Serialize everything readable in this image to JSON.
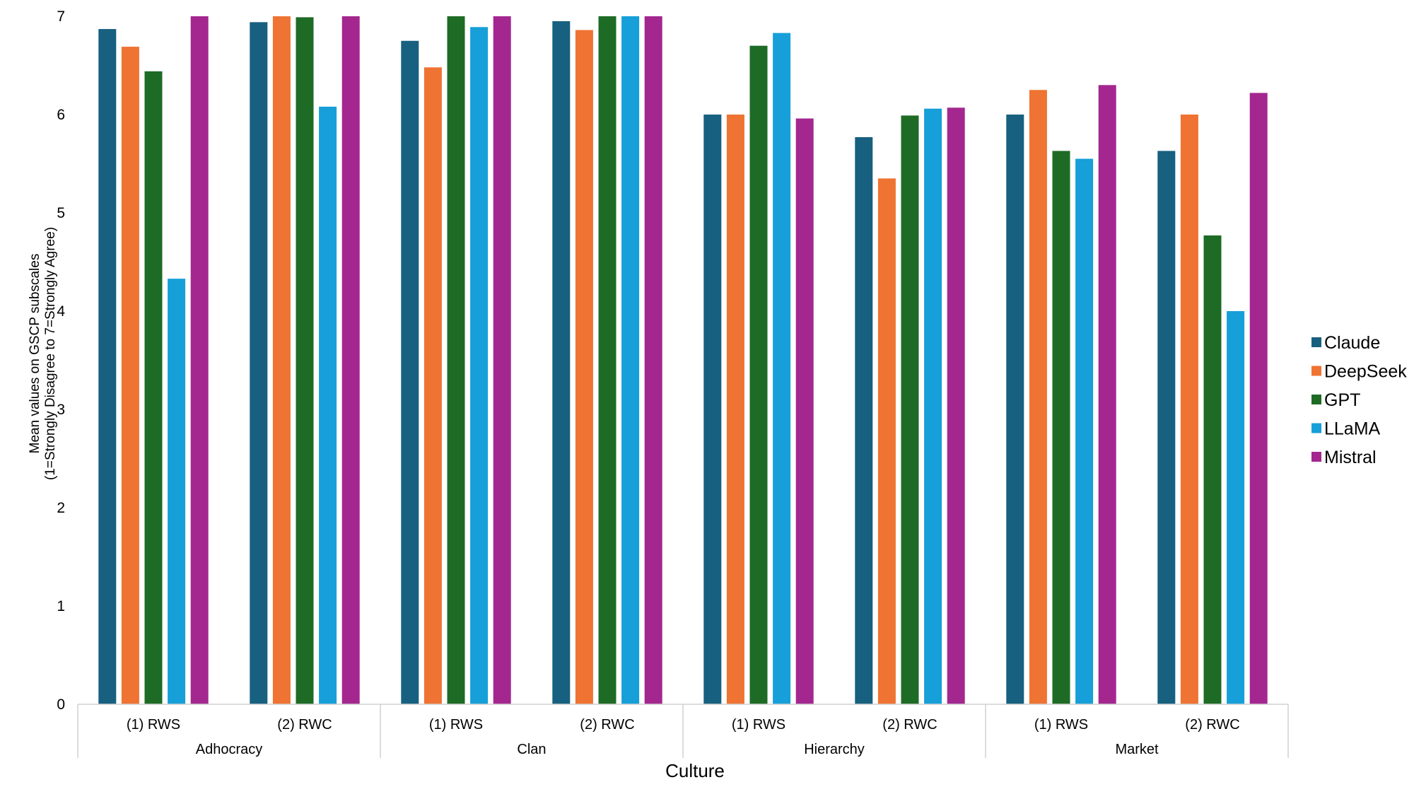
{
  "chart_data": {
    "type": "bar",
    "title": "",
    "xlabel": "Culture",
    "ylabel_lines": [
      "Mean values on GSCP subscales",
      "(1=Strongly Disagree to 7=Strongly Agree)"
    ],
    "ylim": [
      0,
      7
    ],
    "yticks": [
      0,
      1,
      2,
      3,
      4,
      5,
      6,
      7
    ],
    "grid": false,
    "legend_position": "right",
    "groups": [
      {
        "name": "Adhocracy",
        "subcategories": [
          "(1) RWS",
          "(2) RWC"
        ]
      },
      {
        "name": "Clan",
        "subcategories": [
          "(1) RWS",
          "(2) RWC"
        ]
      },
      {
        "name": "Hierarchy",
        "subcategories": [
          "(1) RWS",
          "(2) RWC"
        ]
      },
      {
        "name": "Market",
        "subcategories": [
          "(1) RWS",
          "(2) RWC"
        ]
      }
    ],
    "categories": [
      "Adhocracy (1) RWS",
      "Adhocracy (2) RWC",
      "Clan (1) RWS",
      "Clan (2) RWC",
      "Hierarchy (1) RWS",
      "Hierarchy (2) RWC",
      "Market (1) RWS",
      "Market (2) RWC"
    ],
    "series": [
      {
        "name": "Claude",
        "color": "#17607f",
        "values": [
          6.87,
          6.94,
          6.75,
          6.95,
          6.0,
          5.77,
          6.0,
          5.63
        ]
      },
      {
        "name": "DeepSeek",
        "color": "#ef7332",
        "values": [
          6.69,
          7.0,
          6.48,
          6.86,
          6.0,
          5.35,
          6.25,
          6.0
        ]
      },
      {
        "name": "GPT",
        "color": "#1e6b26",
        "values": [
          6.44,
          6.99,
          7.0,
          7.0,
          6.7,
          5.99,
          5.63,
          4.77
        ]
      },
      {
        "name": "LLaMA",
        "color": "#169fd8",
        "values": [
          4.33,
          6.08,
          6.89,
          7.0,
          6.83,
          6.06,
          5.55,
          4.0
        ]
      },
      {
        "name": "Mistral",
        "color": "#a3278f",
        "values": [
          7.0,
          7.0,
          7.0,
          7.0,
          5.96,
          6.07,
          6.3,
          6.22
        ]
      }
    ]
  }
}
